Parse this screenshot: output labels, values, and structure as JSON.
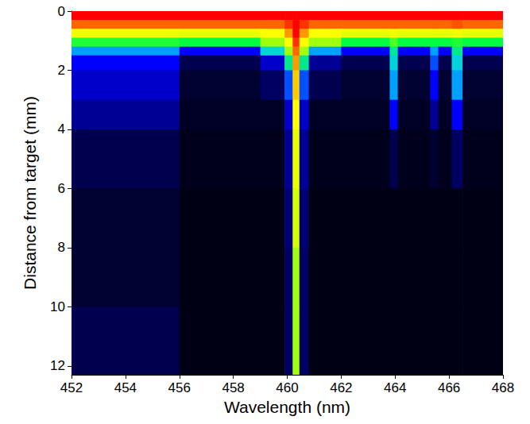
{
  "chart_data": {
    "type": "heatmap",
    "x_label": "Wavelength (nm)",
    "y_label": "Distance from target (mm)",
    "xlim": [
      452,
      468
    ],
    "xticks": [
      452,
      454,
      456,
      458,
      460,
      462,
      464,
      466,
      468
    ],
    "ylim": [
      0,
      12.3
    ],
    "yticks": [
      0,
      2,
      4,
      6,
      8,
      10,
      12
    ],
    "grid": false,
    "zlim": [
      0,
      1
    ],
    "x_edges": [
      452,
      456,
      459,
      459.9,
      460.2,
      460.45,
      460.8,
      462,
      463.8,
      464.1,
      465.3,
      465.6,
      466.1,
      466.5,
      468
    ],
    "y_edges": [
      0,
      0.3,
      0.6,
      0.9,
      1.2,
      1.5,
      2,
      3,
      4,
      6,
      8,
      10,
      12.3
    ],
    "cells": [
      [
        1.0,
        1.0,
        1.0,
        1.0,
        1.0,
        1.0,
        1.0,
        1.0,
        1.0,
        1.0,
        1.0,
        1.0,
        1.0,
        1.0
      ],
      [
        0.9,
        0.9,
        0.9,
        0.95,
        1.0,
        0.95,
        0.9,
        0.9,
        0.9,
        0.9,
        0.9,
        0.9,
        0.92,
        0.9
      ],
      [
        0.72,
        0.7,
        0.75,
        0.85,
        1.0,
        0.85,
        0.75,
        0.7,
        0.72,
        0.7,
        0.7,
        0.7,
        0.72,
        0.7
      ],
      [
        0.52,
        0.5,
        0.6,
        0.75,
        0.95,
        0.75,
        0.6,
        0.5,
        0.55,
        0.5,
        0.5,
        0.5,
        0.52,
        0.5
      ],
      [
        0.35,
        0.25,
        0.4,
        0.6,
        0.9,
        0.6,
        0.35,
        0.25,
        0.45,
        0.25,
        0.35,
        0.25,
        0.45,
        0.25
      ],
      [
        0.25,
        0.08,
        0.2,
        0.45,
        0.85,
        0.45,
        0.15,
        0.08,
        0.4,
        0.08,
        0.3,
        0.08,
        0.4,
        0.08
      ],
      [
        0.2,
        0.05,
        0.1,
        0.3,
        0.8,
        0.3,
        0.08,
        0.05,
        0.35,
        0.05,
        0.25,
        0.05,
        0.35,
        0.05
      ],
      [
        0.15,
        0.04,
        0.04,
        0.2,
        0.75,
        0.2,
        0.04,
        0.04,
        0.25,
        0.04,
        0.15,
        0.04,
        0.25,
        0.04
      ],
      [
        0.08,
        0.03,
        0.03,
        0.15,
        0.7,
        0.15,
        0.03,
        0.03,
        0.08,
        0.03,
        0.05,
        0.03,
        0.1,
        0.03
      ],
      [
        0.05,
        0.02,
        0.02,
        0.12,
        0.65,
        0.12,
        0.02,
        0.02,
        0.02,
        0.02,
        0.02,
        0.02,
        0.02,
        0.02
      ],
      [
        0.05,
        0.02,
        0.02,
        0.1,
        0.6,
        0.1,
        0.02,
        0.02,
        0.02,
        0.02,
        0.02,
        0.02,
        0.02,
        0.02
      ],
      [
        0.08,
        0.02,
        0.02,
        0.1,
        0.6,
        0.1,
        0.02,
        0.02,
        0.02,
        0.02,
        0.02,
        0.02,
        0.02,
        0.02
      ]
    ]
  }
}
